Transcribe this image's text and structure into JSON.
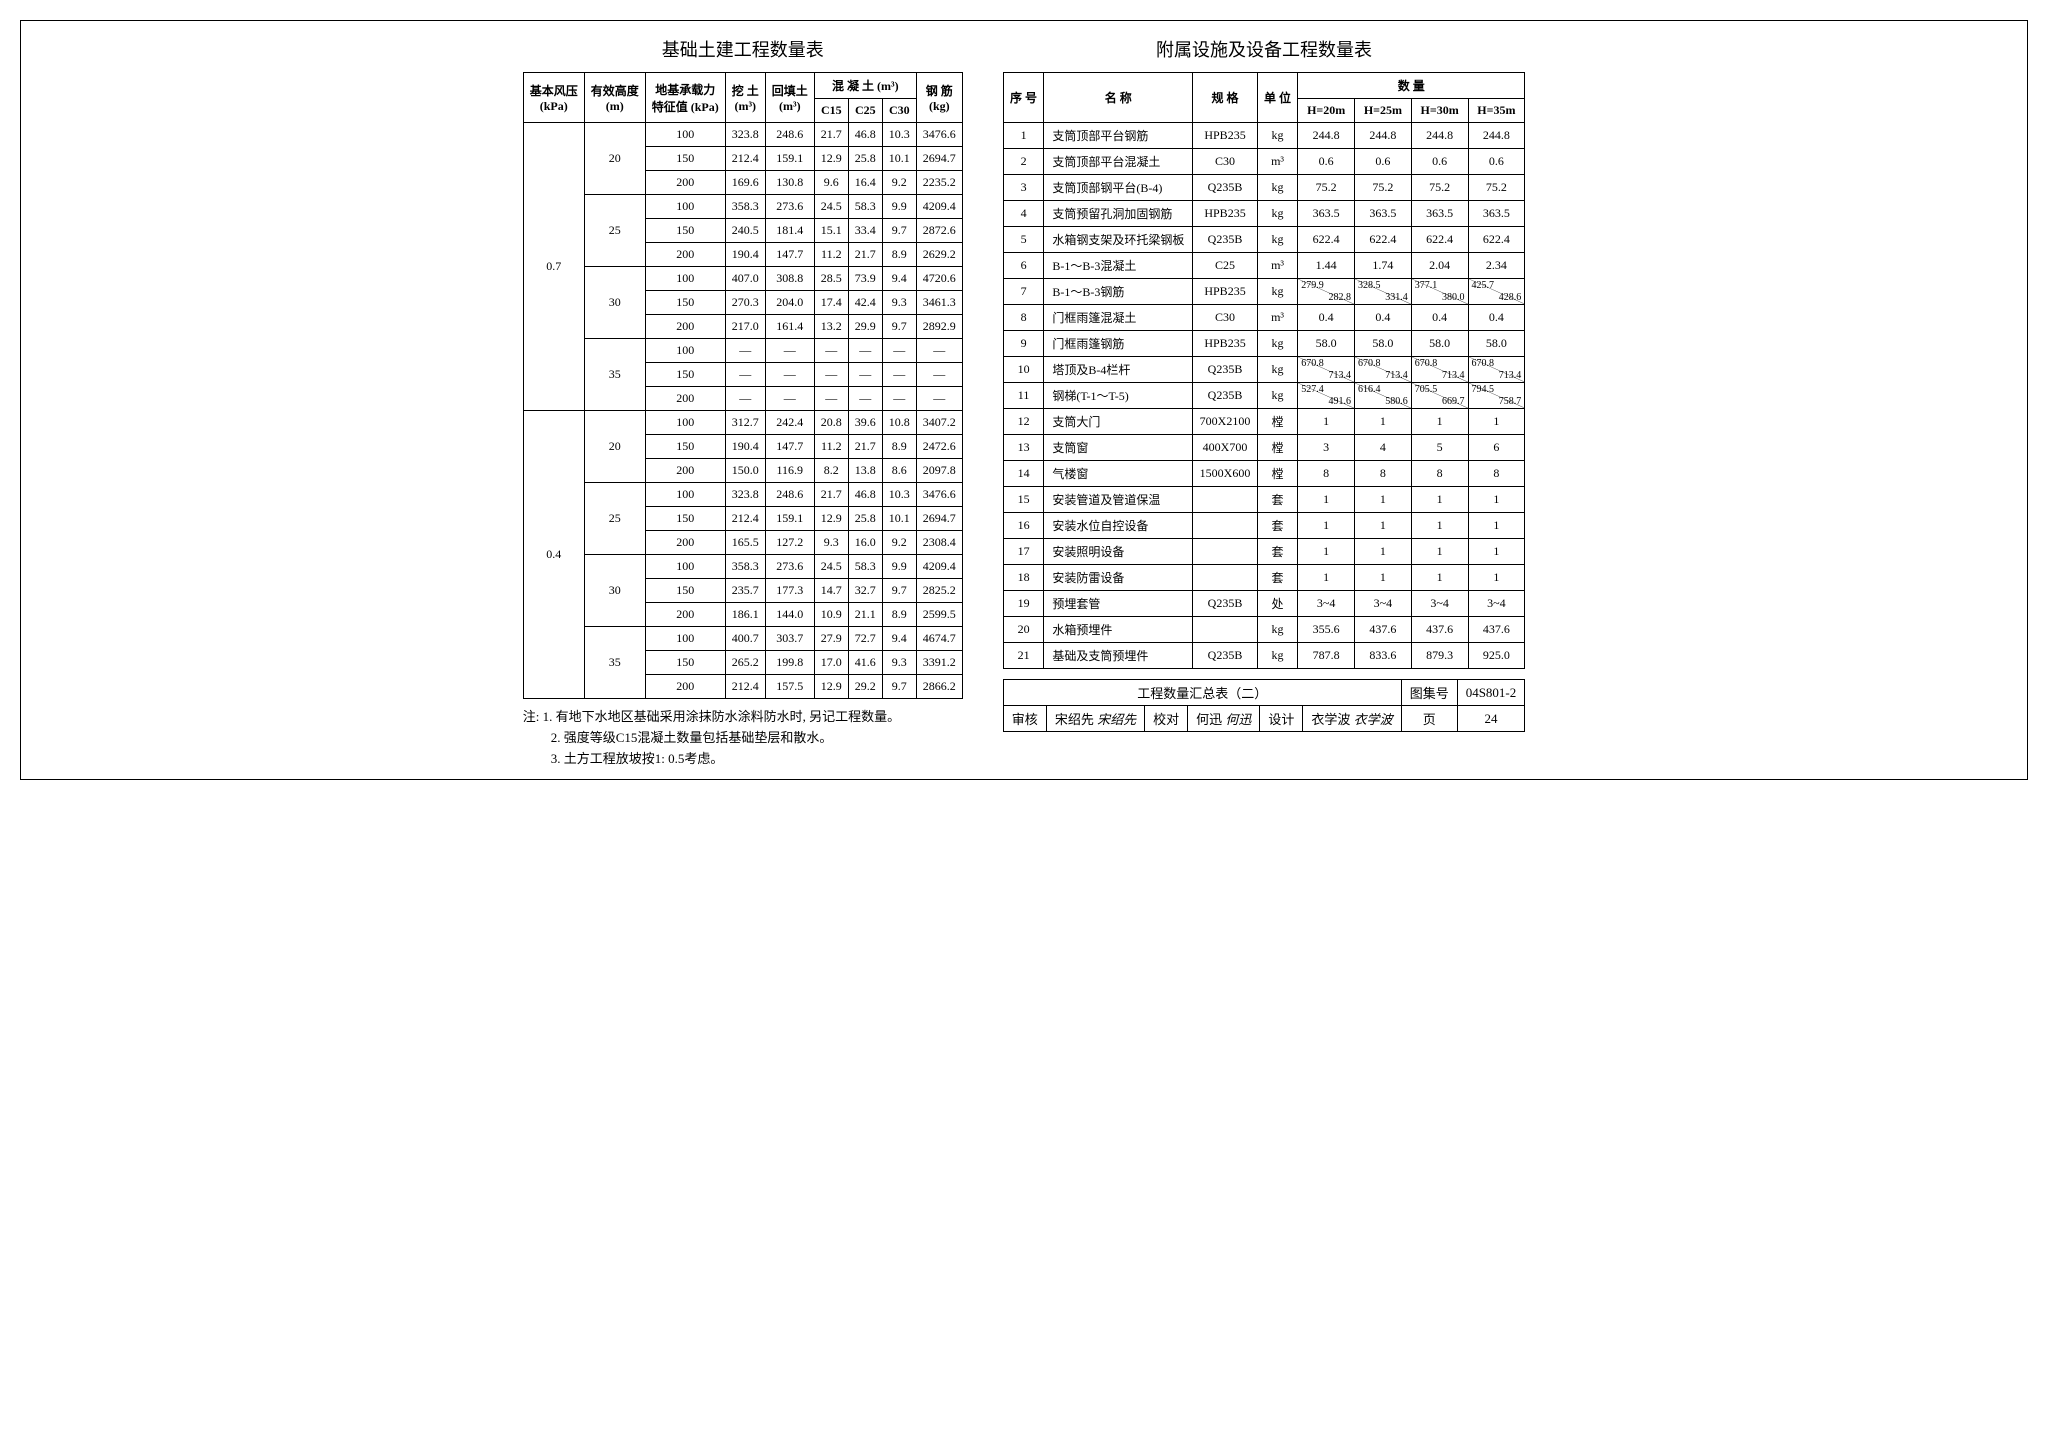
{
  "titles": {
    "left": "基础土建工程数量表",
    "right": "附属设施及设备工程数量表",
    "summary": "工程数量汇总表（二）",
    "drawing_set_label": "图集号",
    "drawing_set_value": "04S801-2",
    "page_label": "页",
    "page_value": "24"
  },
  "left_table": {
    "headers": {
      "c1": "基本风压",
      "c1_unit": "(kPa)",
      "c2": "有效高度",
      "c2_unit": "(m)",
      "c3": "地基承载力",
      "c3_unit": "特征值 (kPa)",
      "c4": "挖 土",
      "c4_unit": "(m³)",
      "c5": "回填土",
      "c5_unit": "(m³)",
      "concrete": "混 凝 土 (m³)",
      "c15": "C15",
      "c25": "C25",
      "c30": "C30",
      "steel": "钢 筋",
      "steel_unit": "(kg)"
    },
    "groups": [
      {
        "wind": "0.7",
        "subgroups": [
          {
            "height": "20",
            "rows": [
              {
                "bear": "100",
                "exc": "323.8",
                "back": "248.6",
                "c15": "21.7",
                "c25": "46.8",
                "c30": "10.3",
                "steel": "3476.6"
              },
              {
                "bear": "150",
                "exc": "212.4",
                "back": "159.1",
                "c15": "12.9",
                "c25": "25.8",
                "c30": "10.1",
                "steel": "2694.7"
              },
              {
                "bear": "200",
                "exc": "169.6",
                "back": "130.8",
                "c15": "9.6",
                "c25": "16.4",
                "c30": "9.2",
                "steel": "2235.2"
              }
            ]
          },
          {
            "height": "25",
            "rows": [
              {
                "bear": "100",
                "exc": "358.3",
                "back": "273.6",
                "c15": "24.5",
                "c25": "58.3",
                "c30": "9.9",
                "steel": "4209.4"
              },
              {
                "bear": "150",
                "exc": "240.5",
                "back": "181.4",
                "c15": "15.1",
                "c25": "33.4",
                "c30": "9.7",
                "steel": "2872.6"
              },
              {
                "bear": "200",
                "exc": "190.4",
                "back": "147.7",
                "c15": "11.2",
                "c25": "21.7",
                "c30": "8.9",
                "steel": "2629.2"
              }
            ]
          },
          {
            "height": "30",
            "rows": [
              {
                "bear": "100",
                "exc": "407.0",
                "back": "308.8",
                "c15": "28.5",
                "c25": "73.9",
                "c30": "9.4",
                "steel": "4720.6"
              },
              {
                "bear": "150",
                "exc": "270.3",
                "back": "204.0",
                "c15": "17.4",
                "c25": "42.4",
                "c30": "9.3",
                "steel": "3461.3"
              },
              {
                "bear": "200",
                "exc": "217.0",
                "back": "161.4",
                "c15": "13.2",
                "c25": "29.9",
                "c30": "9.7",
                "steel": "2892.9"
              }
            ]
          },
          {
            "height": "35",
            "rows": [
              {
                "bear": "100",
                "exc": "—",
                "back": "—",
                "c15": "—",
                "c25": "—",
                "c30": "—",
                "steel": "—"
              },
              {
                "bear": "150",
                "exc": "—",
                "back": "—",
                "c15": "—",
                "c25": "—",
                "c30": "—",
                "steel": "—"
              },
              {
                "bear": "200",
                "exc": "—",
                "back": "—",
                "c15": "—",
                "c25": "—",
                "c30": "—",
                "steel": "—"
              }
            ]
          }
        ]
      },
      {
        "wind": "0.4",
        "subgroups": [
          {
            "height": "20",
            "rows": [
              {
                "bear": "100",
                "exc": "312.7",
                "back": "242.4",
                "c15": "20.8",
                "c25": "39.6",
                "c30": "10.8",
                "steel": "3407.2"
              },
              {
                "bear": "150",
                "exc": "190.4",
                "back": "147.7",
                "c15": "11.2",
                "c25": "21.7",
                "c30": "8.9",
                "steel": "2472.6"
              },
              {
                "bear": "200",
                "exc": "150.0",
                "back": "116.9",
                "c15": "8.2",
                "c25": "13.8",
                "c30": "8.6",
                "steel": "2097.8"
              }
            ]
          },
          {
            "height": "25",
            "rows": [
              {
                "bear": "100",
                "exc": "323.8",
                "back": "248.6",
                "c15": "21.7",
                "c25": "46.8",
                "c30": "10.3",
                "steel": "3476.6"
              },
              {
                "bear": "150",
                "exc": "212.4",
                "back": "159.1",
                "c15": "12.9",
                "c25": "25.8",
                "c30": "10.1",
                "steel": "2694.7"
              },
              {
                "bear": "200",
                "exc": "165.5",
                "back": "127.2",
                "c15": "9.3",
                "c25": "16.0",
                "c30": "9.2",
                "steel": "2308.4"
              }
            ]
          },
          {
            "height": "30",
            "rows": [
              {
                "bear": "100",
                "exc": "358.3",
                "back": "273.6",
                "c15": "24.5",
                "c25": "58.3",
                "c30": "9.9",
                "steel": "4209.4"
              },
              {
                "bear": "150",
                "exc": "235.7",
                "back": "177.3",
                "c15": "14.7",
                "c25": "32.7",
                "c30": "9.7",
                "steel": "2825.2"
              },
              {
                "bear": "200",
                "exc": "186.1",
                "back": "144.0",
                "c15": "10.9",
                "c25": "21.1",
                "c30": "8.9",
                "steel": "2599.5"
              }
            ]
          },
          {
            "height": "35",
            "rows": [
              {
                "bear": "100",
                "exc": "400.7",
                "back": "303.7",
                "c15": "27.9",
                "c25": "72.7",
                "c30": "9.4",
                "steel": "4674.7"
              },
              {
                "bear": "150",
                "exc": "265.2",
                "back": "199.8",
                "c15": "17.0",
                "c25": "41.6",
                "c30": "9.3",
                "steel": "3391.2"
              },
              {
                "bear": "200",
                "exc": "212.4",
                "back": "157.5",
                "c15": "12.9",
                "c25": "29.2",
                "c30": "9.7",
                "steel": "2866.2"
              }
            ]
          }
        ]
      }
    ]
  },
  "notes": {
    "prefix": "注:",
    "n1": "1. 有地下水地区基础采用涂抹防水涂料防水时, 另记工程数量。",
    "n2": "2. 强度等级C15混凝土数量包括基础垫层和散水。",
    "n3": "3. 土方工程放坡按1: 0.5考虑。"
  },
  "right_table": {
    "headers": {
      "seq": "序 号",
      "name": "名  称",
      "spec": "规 格",
      "unit": "单 位",
      "qty": "数    量",
      "h20": "H=20m",
      "h25": "H=25m",
      "h30": "H=30m",
      "h35": "H=35m"
    },
    "rows": [
      {
        "seq": "1",
        "name": "支筒顶部平台钢筋",
        "spec": "HPB235",
        "unit": "kg",
        "v": [
          "244.8",
          "244.8",
          "244.8",
          "244.8"
        ]
      },
      {
        "seq": "2",
        "name": "支筒顶部平台混凝土",
        "spec": "C30",
        "unit": "m³",
        "v": [
          "0.6",
          "0.6",
          "0.6",
          "0.6"
        ]
      },
      {
        "seq": "3",
        "name": "支筒顶部钢平台(B-4)",
        "spec": "Q235B",
        "unit": "kg",
        "v": [
          "75.2",
          "75.2",
          "75.2",
          "75.2"
        ]
      },
      {
        "seq": "4",
        "name": "支筒预留孔洞加固钢筋",
        "spec": "HPB235",
        "unit": "kg",
        "v": [
          "363.5",
          "363.5",
          "363.5",
          "363.5"
        ]
      },
      {
        "seq": "5",
        "name": "水箱钢支架及环托梁钢板",
        "spec": "Q235B",
        "unit": "kg",
        "v": [
          "622.4",
          "622.4",
          "622.4",
          "622.4"
        ]
      },
      {
        "seq": "6",
        "name": "B-1～B-3混凝土",
        "spec": "C25",
        "unit": "m³",
        "v": [
          "1.44",
          "1.74",
          "2.04",
          "2.34"
        ]
      },
      {
        "seq": "7",
        "name": "B-1～B-3钢筋",
        "spec": "HPB235",
        "unit": "kg",
        "split": [
          [
            "279.9",
            "282.8"
          ],
          [
            "328.5",
            "331.4"
          ],
          [
            "377.1",
            "380.0"
          ],
          [
            "425.7",
            "428.6"
          ]
        ]
      },
      {
        "seq": "8",
        "name": "门框雨篷混凝土",
        "spec": "C30",
        "unit": "m³",
        "v": [
          "0.4",
          "0.4",
          "0.4",
          "0.4"
        ]
      },
      {
        "seq": "9",
        "name": "门框雨篷钢筋",
        "spec": "HPB235",
        "unit": "kg",
        "v": [
          "58.0",
          "58.0",
          "58.0",
          "58.0"
        ]
      },
      {
        "seq": "10",
        "name": "塔顶及B-4栏杆",
        "spec": "Q235B",
        "unit": "kg",
        "split": [
          [
            "670.8",
            "713.4"
          ],
          [
            "670.8",
            "713.4"
          ],
          [
            "670.8",
            "713.4"
          ],
          [
            "670.8",
            "713.4"
          ]
        ]
      },
      {
        "seq": "11",
        "name": "钢梯(T-1～T-5)",
        "spec": "Q235B",
        "unit": "kg",
        "split": [
          [
            "527.4",
            "491.6"
          ],
          [
            "616.4",
            "580.6"
          ],
          [
            "705.5",
            "669.7"
          ],
          [
            "794.5",
            "758.7"
          ]
        ]
      },
      {
        "seq": "12",
        "name": "支筒大门",
        "spec": "700X2100",
        "unit": "樘",
        "v": [
          "1",
          "1",
          "1",
          "1"
        ]
      },
      {
        "seq": "13",
        "name": "支筒窗",
        "spec": "400X700",
        "unit": "樘",
        "v": [
          "3",
          "4",
          "5",
          "6"
        ]
      },
      {
        "seq": "14",
        "name": "气楼窗",
        "spec": "1500X600",
        "unit": "樘",
        "v": [
          "8",
          "8",
          "8",
          "8"
        ]
      },
      {
        "seq": "15",
        "name": "安装管道及管道保温",
        "spec": "",
        "unit": "套",
        "v": [
          "1",
          "1",
          "1",
          "1"
        ]
      },
      {
        "seq": "16",
        "name": "安装水位自控设备",
        "spec": "",
        "unit": "套",
        "v": [
          "1",
          "1",
          "1",
          "1"
        ]
      },
      {
        "seq": "17",
        "name": "安装照明设备",
        "spec": "",
        "unit": "套",
        "v": [
          "1",
          "1",
          "1",
          "1"
        ]
      },
      {
        "seq": "18",
        "name": "安装防雷设备",
        "spec": "",
        "unit": "套",
        "v": [
          "1",
          "1",
          "1",
          "1"
        ]
      },
      {
        "seq": "19",
        "name": "预埋套管",
        "spec": "Q235B",
        "unit": "处",
        "v": [
          "3~4",
          "3~4",
          "3~4",
          "3~4"
        ]
      },
      {
        "seq": "20",
        "name": "水箱预埋件",
        "spec": "",
        "unit": "kg",
        "v": [
          "355.6",
          "437.6",
          "437.6",
          "437.6"
        ]
      },
      {
        "seq": "21",
        "name": "基础及支筒预埋件",
        "spec": "Q235B",
        "unit": "kg",
        "v": [
          "787.8",
          "833.6",
          "879.3",
          "925.0"
        ]
      }
    ]
  },
  "title_block": {
    "review": "审核",
    "review_name": "宋绍先",
    "review_sign": "宋绍先",
    "check": "校对",
    "check_name": "何迅",
    "check_sign": "何迅",
    "design": "设计",
    "design_name": "衣学波",
    "design_sign": "衣学波"
  }
}
